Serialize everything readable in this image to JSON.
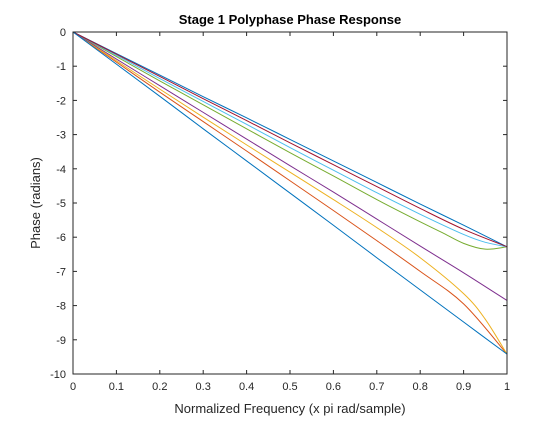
{
  "chart_data": {
    "type": "line",
    "title": "Stage 1 Polyphase Phase Response",
    "xlabel": "Normalized Frequency (x pi rad/sample)",
    "ylabel": "Phase (radians)",
    "xlim": [
      0,
      1
    ],
    "ylim": [
      -10,
      0
    ],
    "xticks": [
      0,
      0.1,
      0.2,
      0.3,
      0.4,
      0.5,
      0.6,
      0.7,
      0.8,
      0.9,
      1
    ],
    "xtick_labels": [
      "0",
      "0.1",
      "0.2",
      "0.3",
      "0.4",
      "0.5",
      "0.6",
      "0.7",
      "0.8",
      "0.9",
      "1"
    ],
    "yticks": [
      0,
      -1,
      -2,
      -3,
      -4,
      -5,
      -6,
      -7,
      -8,
      -9,
      -10
    ],
    "ytick_labels": [
      "0",
      "-1",
      "-2",
      "-3",
      "-4",
      "-5",
      "-6",
      "-7",
      "-8",
      "-9",
      "-10"
    ],
    "grid": false,
    "legend": "none",
    "series": [
      {
        "color": "#0072BD",
        "x": [
          0,
          0.1,
          0.2,
          0.3,
          0.4,
          0.5,
          0.6,
          0.7,
          0.8,
          0.9,
          1.0
        ],
        "y": [
          0,
          -0.63,
          -1.26,
          -1.89,
          -2.51,
          -3.14,
          -3.77,
          -4.4,
          -5.03,
          -5.65,
          -6.28
        ]
      },
      {
        "color": "#D95319",
        "x": [
          0,
          0.1,
          0.2,
          0.3,
          0.4,
          0.5,
          0.6,
          0.7,
          0.8,
          0.9,
          1.0
        ],
        "y": [
          0,
          -0.88,
          -1.76,
          -2.62,
          -3.48,
          -4.35,
          -5.22,
          -6.1,
          -7.0,
          -7.95,
          -9.42
        ]
      },
      {
        "color": "#EDB120",
        "x": [
          0,
          0.1,
          0.2,
          0.3,
          0.4,
          0.5,
          0.6,
          0.7,
          0.8,
          0.9,
          0.95,
          1.0
        ],
        "y": [
          0,
          -0.84,
          -1.67,
          -2.49,
          -3.3,
          -4.1,
          -4.9,
          -5.72,
          -6.6,
          -7.65,
          -8.4,
          -9.42
        ]
      },
      {
        "color": "#7E2F8E",
        "x": [
          0,
          0.1,
          0.2,
          0.3,
          0.4,
          0.5,
          0.6,
          0.7,
          0.8,
          0.9,
          1.0
        ],
        "y": [
          0,
          -0.79,
          -1.57,
          -2.35,
          -3.13,
          -3.91,
          -4.68,
          -5.47,
          -6.26,
          -7.04,
          -7.85
        ]
      },
      {
        "color": "#77AC30",
        "x": [
          0,
          0.1,
          0.2,
          0.3,
          0.4,
          0.5,
          0.6,
          0.7,
          0.8,
          0.85,
          0.9,
          0.95,
          1.0
        ],
        "y": [
          0,
          -0.72,
          -1.43,
          -2.13,
          -2.83,
          -3.53,
          -4.21,
          -4.9,
          -5.55,
          -5.86,
          -6.18,
          -6.35,
          -6.28
        ]
      },
      {
        "color": "#4DBEEE",
        "x": [
          0,
          0.1,
          0.2,
          0.3,
          0.4,
          0.5,
          0.6,
          0.7,
          0.8,
          0.9,
          0.95,
          1.0
        ],
        "y": [
          0,
          -0.68,
          -1.36,
          -2.03,
          -2.7,
          -3.38,
          -4.04,
          -4.7,
          -5.33,
          -5.92,
          -6.15,
          -6.28
        ]
      },
      {
        "color": "#A2142F",
        "x": [
          0,
          0.1,
          0.2,
          0.3,
          0.4,
          0.5,
          0.6,
          0.7,
          0.8,
          0.9,
          1.0
        ],
        "y": [
          0,
          -0.65,
          -1.3,
          -1.95,
          -2.59,
          -3.24,
          -3.88,
          -4.52,
          -5.16,
          -5.77,
          -6.28
        ]
      },
      {
        "color": "#0072BD",
        "x": [
          0,
          0.1,
          0.2,
          0.3,
          0.4,
          0.5,
          0.6,
          0.7,
          0.8,
          0.9,
          1.0
        ],
        "y": [
          0,
          -0.94,
          -1.88,
          -2.83,
          -3.77,
          -4.71,
          -5.65,
          -6.6,
          -7.54,
          -8.48,
          -9.42
        ]
      }
    ]
  }
}
